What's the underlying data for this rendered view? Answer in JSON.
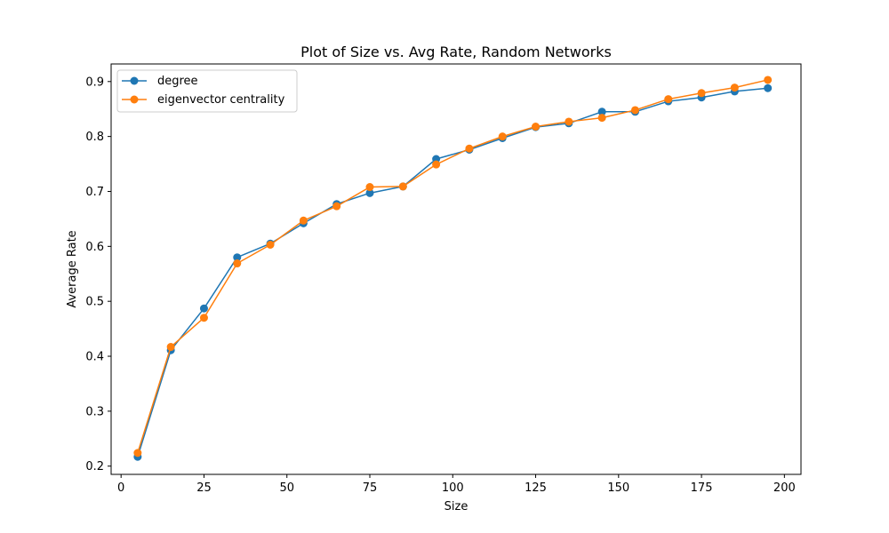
{
  "chart_data": {
    "type": "line",
    "title": "Plot of Size vs. Avg Rate, Random Networks",
    "xlabel": "Size",
    "ylabel": "Average Rate",
    "xlim": [
      -3,
      205
    ],
    "ylim": [
      0.185,
      0.932
    ],
    "xticks": [
      0,
      25,
      50,
      75,
      100,
      125,
      150,
      175,
      200
    ],
    "yticks": [
      0.2,
      0.3,
      0.4,
      0.5,
      0.6,
      0.7,
      0.8,
      0.9
    ],
    "xtick_labels": [
      "0",
      "25",
      "50",
      "75",
      "100",
      "125",
      "150",
      "175",
      "200"
    ],
    "ytick_labels": [
      "0.2",
      "0.3",
      "0.4",
      "0.5",
      "0.6",
      "0.7",
      "0.8",
      "0.9"
    ],
    "grid": false,
    "legend_position": "top-left",
    "x": [
      5,
      15,
      25,
      35,
      45,
      55,
      65,
      75,
      85,
      95,
      105,
      115,
      125,
      135,
      145,
      155,
      165,
      175,
      185,
      195
    ],
    "series": [
      {
        "name": "degree",
        "color": "#1f77b4",
        "marker": "circle",
        "values": [
          0.217,
          0.411,
          0.487,
          0.58,
          0.605,
          0.642,
          0.677,
          0.697,
          0.709,
          0.759,
          0.776,
          0.797,
          0.817,
          0.824,
          0.845,
          0.845,
          0.864,
          0.871,
          0.882,
          0.888
        ]
      },
      {
        "name": "eigenvector centrality",
        "color": "#ff7f0e",
        "marker": "circle",
        "values": [
          0.224,
          0.417,
          0.47,
          0.569,
          0.603,
          0.647,
          0.673,
          0.708,
          0.709,
          0.749,
          0.778,
          0.8,
          0.818,
          0.827,
          0.834,
          0.848,
          0.868,
          0.879,
          0.889,
          0.903
        ]
      }
    ]
  }
}
